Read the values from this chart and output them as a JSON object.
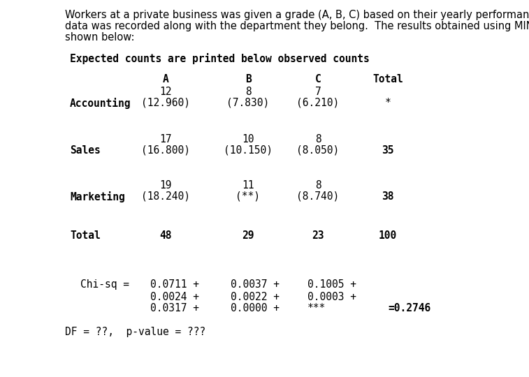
{
  "intro_line1": "Workers at a private business was given a grade (A, B, C) based on their yearly performance. The",
  "intro_line2": "data was recorded along with the department they belong.  The results obtained using MINITAB are",
  "intro_line3": "shown below:",
  "header_line": "Expected counts are printed below observed counts",
  "col_headers": [
    "A",
    "B",
    "C",
    "Total"
  ],
  "rows": [
    {
      "dept": "Accounting",
      "obs": [
        "12",
        "8",
        "7"
      ],
      "exp": [
        "(12.960)",
        "(7.830)",
        "(6.210)"
      ],
      "total": "*"
    },
    {
      "dept": "Sales",
      "obs": [
        "17",
        "10",
        "8"
      ],
      "exp": [
        "(16.800)",
        "(10.150)",
        "(8.050)"
      ],
      "total": "35"
    },
    {
      "dept": "Marketing",
      "obs": [
        "19",
        "11",
        "8"
      ],
      "exp": [
        "(18.240)",
        "(**)",
        "(8.740)"
      ],
      "total": "38"
    }
  ],
  "total_row": {
    "label": "Total",
    "values": [
      "48",
      "29",
      "23",
      "100"
    ]
  },
  "chisq_label": "Chi-sq =",
  "chisq_line1": [
    "0.0711 +",
    "0.0037 +",
    "0.1005 +"
  ],
  "chisq_line2": [
    "0.0024 +",
    "0.0022 +",
    "0.0003 +"
  ],
  "chisq_line3": [
    "0.0317 +",
    "0.0000 +",
    "***"
  ],
  "chisq_total": "=0.2746",
  "df_line": "DF = ??,  p-value = ???",
  "bg_color": "#ffffff",
  "text_color": "#000000",
  "intro_fontsize": 10.5,
  "mono_fontsize": 10.5,
  "figw": 7.57,
  "figh": 5.4,
  "dpi": 100
}
